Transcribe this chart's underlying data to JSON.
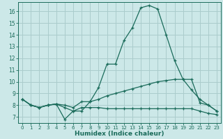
{
  "xlabel": "Humidex (Indice chaleur)",
  "ylabel": "",
  "xlim": [
    -0.5,
    23.5
  ],
  "ylim": [
    6.5,
    16.8
  ],
  "xticks": [
    0,
    1,
    2,
    3,
    4,
    5,
    6,
    7,
    8,
    9,
    10,
    11,
    12,
    13,
    14,
    15,
    16,
    17,
    18,
    19,
    20,
    21,
    22,
    23
  ],
  "yticks": [
    7,
    8,
    9,
    10,
    11,
    12,
    13,
    14,
    15,
    16
  ],
  "bg_color": "#cce8e8",
  "grid_color": "#aacccc",
  "line_color": "#1a6b5a",
  "lines": [
    {
      "x": [
        0,
        1,
        2,
        3,
        4,
        5,
        6,
        7,
        8,
        9,
        10,
        11,
        12,
        13,
        14,
        15,
        16,
        17,
        18,
        19,
        20,
        21,
        22,
        23
      ],
      "y": [
        8.5,
        8.0,
        7.8,
        8.0,
        8.1,
        6.8,
        7.5,
        7.5,
        8.3,
        9.5,
        11.5,
        11.5,
        13.5,
        14.6,
        16.3,
        16.5,
        16.2,
        14.0,
        11.8,
        10.2,
        10.2,
        8.2,
        8.0,
        7.5
      ]
    },
    {
      "x": [
        0,
        1,
        2,
        3,
        4,
        5,
        6,
        7,
        8,
        9,
        10,
        11,
        12,
        13,
        14,
        15,
        16,
        17,
        18,
        19,
        20,
        21,
        22,
        23
      ],
      "y": [
        8.5,
        8.0,
        7.8,
        8.0,
        8.1,
        8.0,
        7.8,
        8.3,
        8.3,
        8.5,
        8.8,
        9.0,
        9.2,
        9.4,
        9.6,
        9.8,
        10.0,
        10.1,
        10.2,
        10.2,
        9.3,
        8.5,
        8.0,
        7.5
      ]
    },
    {
      "x": [
        0,
        1,
        2,
        3,
        4,
        5,
        6,
        7,
        8,
        9,
        10,
        11,
        12,
        13,
        14,
        15,
        16,
        17,
        18,
        19,
        20,
        21,
        22,
        23
      ],
      "y": [
        8.5,
        8.0,
        7.8,
        8.0,
        8.1,
        7.8,
        7.5,
        7.8,
        7.8,
        7.8,
        7.7,
        7.7,
        7.7,
        7.7,
        7.7,
        7.7,
        7.7,
        7.7,
        7.7,
        7.7,
        7.7,
        7.5,
        7.3,
        7.2
      ]
    }
  ]
}
